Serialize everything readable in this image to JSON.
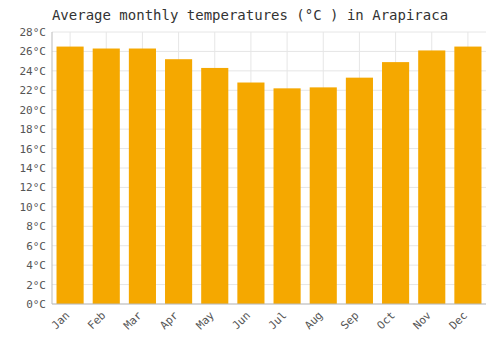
{
  "chart_data": {
    "type": "bar",
    "title": "Average monthly temperatures (°C ) in Arapiraca",
    "categories": [
      "Jan",
      "Feb",
      "Mar",
      "Apr",
      "May",
      "Jun",
      "Jul",
      "Aug",
      "Sep",
      "Oct",
      "Nov",
      "Dec"
    ],
    "values": [
      26.5,
      26.3,
      26.3,
      25.2,
      24.3,
      22.8,
      22.2,
      22.3,
      23.3,
      24.9,
      26.1,
      26.5
    ],
    "color": "#F5A800",
    "ylim": [
      0,
      28
    ],
    "yticks": [
      {
        "value": 0,
        "label": "0°C"
      },
      {
        "value": 2,
        "label": "2°C"
      },
      {
        "value": 4,
        "label": "4°C"
      },
      {
        "value": 6,
        "label": "6°C"
      },
      {
        "value": 8,
        "label": "8°C"
      },
      {
        "value": 10,
        "label": "10°C"
      },
      {
        "value": 12,
        "label": "12°C"
      },
      {
        "value": 14,
        "label": "14°C"
      },
      {
        "value": 16,
        "label": "16°C"
      },
      {
        "value": 18,
        "label": "18°C"
      },
      {
        "value": 20,
        "label": "20°C"
      },
      {
        "value": 22,
        "label": "22°C"
      },
      {
        "value": 24,
        "label": "24°C"
      },
      {
        "value": 26,
        "label": "26°C"
      },
      {
        "value": 28,
        "label": "28°C"
      }
    ],
    "grid": true
  }
}
